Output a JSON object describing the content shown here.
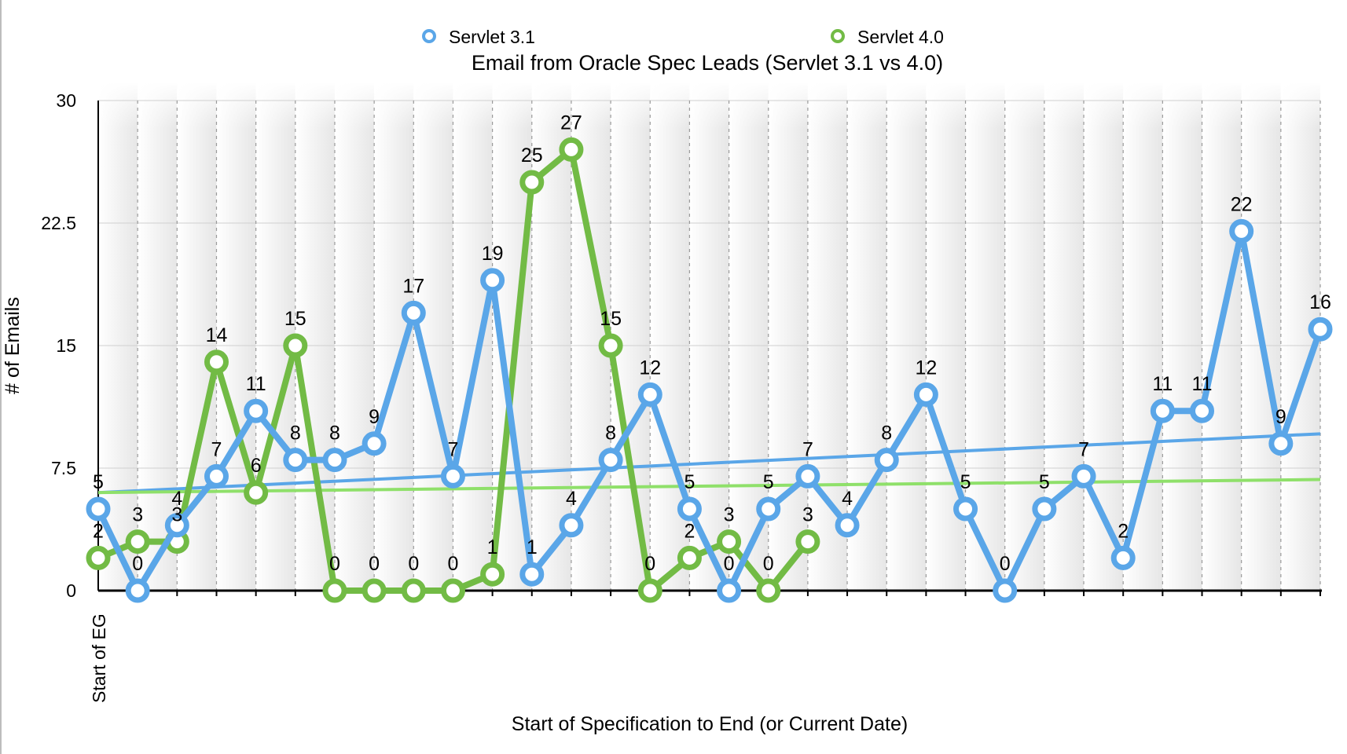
{
  "chart_data": {
    "type": "line",
    "title": "Email from Oracle Spec Leads (Servlet 3.1 vs 4.0)",
    "xlabel": "Start of Specification to End (or Current Date)",
    "ylabel": "# of Emails",
    "x_first_label": "Start of EG",
    "ylim": [
      0,
      30
    ],
    "yticks": [
      0,
      7.5,
      15,
      22.5,
      30
    ],
    "ytick_labels": [
      "0",
      "7.5",
      "15",
      "22.5",
      "30"
    ],
    "num_points": 32,
    "grid": "vertical dashed",
    "legend_position": "top",
    "series": [
      {
        "name": "Servlet 3.1",
        "color": "#5aa6e8",
        "values": [
          5,
          0,
          4,
          7,
          11,
          8,
          8,
          9,
          17,
          7,
          19,
          1,
          4,
          8,
          12,
          5,
          0,
          5,
          7,
          4,
          8,
          12,
          5,
          0,
          5,
          7,
          2,
          11,
          11,
          22,
          9,
          16
        ],
        "trendline": {
          "color": "#5aa6e8",
          "start": 6.0,
          "end": 9.6
        }
      },
      {
        "name": "Servlet 4.0",
        "color": "#72bb45",
        "values": [
          2,
          3,
          3,
          14,
          6,
          15,
          0,
          0,
          0,
          0,
          1,
          25,
          27,
          15,
          0,
          2,
          3,
          0,
          3
        ],
        "trendline": {
          "color": "#8fe06a",
          "start": 6.0,
          "end": 6.8
        }
      }
    ]
  }
}
